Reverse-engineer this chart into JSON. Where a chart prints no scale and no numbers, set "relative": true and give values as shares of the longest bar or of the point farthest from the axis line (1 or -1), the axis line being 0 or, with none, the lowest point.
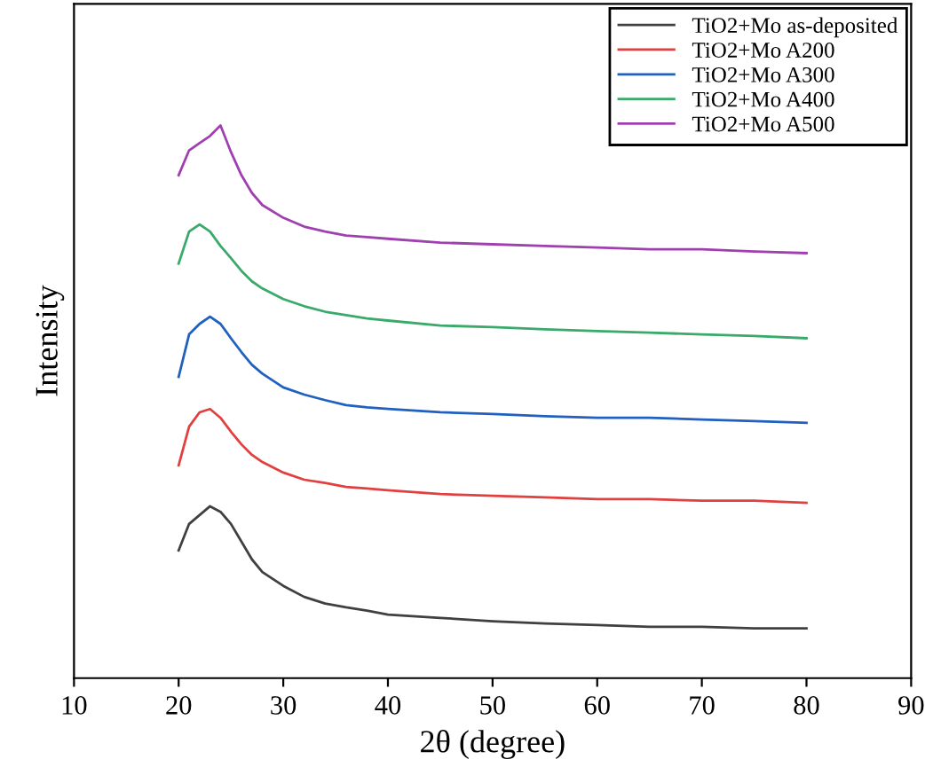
{
  "chart_data": {
    "type": "line",
    "relative": true,
    "xlabel": "2θ (degree)",
    "ylabel": "Intensity",
    "x": [
      20,
      21,
      22,
      23,
      24,
      25,
      26,
      27,
      28,
      30,
      32,
      34,
      36,
      38,
      40,
      45,
      50,
      55,
      60,
      65,
      70,
      75,
      80
    ],
    "xlim": [
      10,
      90
    ],
    "xticks": [
      10,
      20,
      30,
      40,
      50,
      60,
      70,
      80,
      90
    ],
    "legend": "top right",
    "grid": false,
    "marker": "none",
    "line_style": "solid",
    "series": [
      {
        "name": "TiO2+Mo as-deposited",
        "color": "#404040",
        "values": [
          0.231,
          0.279,
          0.295,
          0.311,
          0.301,
          0.279,
          0.247,
          0.215,
          0.192,
          0.167,
          0.147,
          0.135,
          0.128,
          0.122,
          0.115,
          0.109,
          0.103,
          0.099,
          0.096,
          0.093,
          0.093,
          0.09,
          0.09
        ]
      },
      {
        "name": "TiO2+Mo A200",
        "color": "#e0403f",
        "values": [
          0.385,
          0.455,
          0.481,
          0.487,
          0.471,
          0.446,
          0.423,
          0.404,
          0.391,
          0.372,
          0.359,
          0.353,
          0.346,
          0.343,
          0.34,
          0.333,
          0.33,
          0.327,
          0.324,
          0.324,
          0.321,
          0.321,
          0.317
        ]
      },
      {
        "name": "TiO2+Mo A300",
        "color": "#2060c0",
        "values": [
          0.545,
          0.622,
          0.641,
          0.654,
          0.641,
          0.615,
          0.59,
          0.567,
          0.551,
          0.526,
          0.513,
          0.503,
          0.494,
          0.49,
          0.487,
          0.481,
          0.478,
          0.474,
          0.471,
          0.471,
          0.468,
          0.465,
          0.462
        ]
      },
      {
        "name": "TiO2+Mo A400",
        "color": "#3aaa6a",
        "values": [
          0.75,
          0.808,
          0.821,
          0.808,
          0.782,
          0.76,
          0.737,
          0.718,
          0.705,
          0.686,
          0.673,
          0.663,
          0.657,
          0.651,
          0.647,
          0.638,
          0.635,
          0.631,
          0.628,
          0.625,
          0.622,
          0.619,
          0.615
        ]
      },
      {
        "name": "TiO2+Mo A500",
        "color": "#a040b0",
        "values": [
          0.91,
          0.955,
          0.968,
          0.981,
          1,
          0.952,
          0.91,
          0.878,
          0.856,
          0.833,
          0.817,
          0.808,
          0.801,
          0.798,
          0.795,
          0.788,
          0.785,
          0.782,
          0.779,
          0.776,
          0.776,
          0.772,
          0.769
        ]
      }
    ]
  }
}
